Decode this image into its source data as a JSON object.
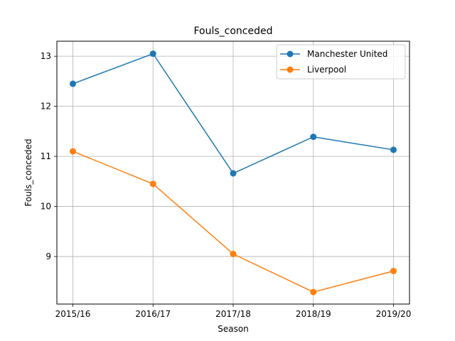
{
  "chart_data": {
    "type": "line",
    "title": "Fouls_conceded",
    "xlabel": "Season",
    "ylabel": "Fouls_conceded",
    "categories": [
      "2015/16",
      "2016/17",
      "2017/18",
      "2018/19",
      "2019/20"
    ],
    "series": [
      {
        "name": "Manchester United",
        "color": "#1f77b4",
        "values": [
          12.45,
          13.05,
          10.66,
          11.39,
          11.13
        ]
      },
      {
        "name": "Liverpool",
        "color": "#ff7f0e",
        "values": [
          11.1,
          10.45,
          9.05,
          8.29,
          8.71
        ]
      }
    ],
    "ylim": [
      8.05,
      13.3
    ],
    "yticks": [
      9,
      10,
      11,
      12,
      13
    ],
    "grid": true,
    "legend": "top-right"
  }
}
